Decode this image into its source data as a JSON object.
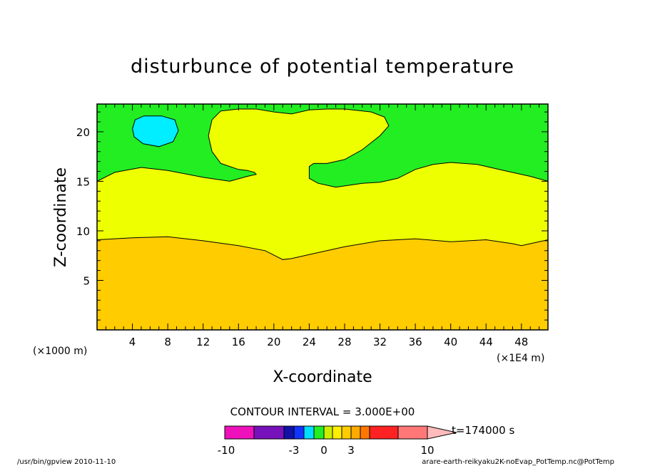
{
  "chart_data": {
    "type": "heatmap",
    "title": "disturbunce of potential temperature",
    "xlabel": "X-coordinate",
    "ylabel": "Z-coordinate",
    "x_unit_left": "(×1000 m)",
    "x_unit_right": "(×1E4 m)",
    "xlim": [
      0,
      51
    ],
    "ylim": [
      0,
      22.8
    ],
    "x_ticks": [
      4,
      8,
      12,
      16,
      20,
      24,
      28,
      32,
      36,
      40,
      44,
      48
    ],
    "y_ticks": [
      5,
      10,
      15,
      20
    ],
    "contour_interval_label": "CONTOUR INTERVAL = 3.000E+00",
    "time_label": "t=174000 s",
    "colorbar": {
      "tick_labels": [
        "-10",
        "-3",
        "0",
        "3",
        "10"
      ],
      "tick_values": [
        -10,
        -3,
        0,
        3,
        10
      ],
      "colors": [
        "#ee11bb",
        "#7711bb",
        "#1111aa",
        "#1133ff",
        "#00ddff",
        "#22ee22",
        "#ccee00",
        "#ffee00",
        "#ffcc00",
        "#ffaa00",
        "#ff7700",
        "#ff2222",
        "#ff7777",
        "#ffbbbb"
      ]
    },
    "regions": [
      {
        "name": "orange",
        "color": "#ffcc00"
      },
      {
        "name": "yellow",
        "color": "#eeff00"
      },
      {
        "name": "green",
        "color": "#22ee22"
      },
      {
        "name": "cyan",
        "color": "#00eeff"
      }
    ],
    "contours": {
      "lower_boundary": [
        [
          0,
          9.1
        ],
        [
          4,
          9.3
        ],
        [
          8,
          9.4
        ],
        [
          12,
          9.0
        ],
        [
          16,
          8.5
        ],
        [
          19,
          8.0
        ],
        [
          21,
          7.1
        ],
        [
          22,
          7.2
        ],
        [
          24,
          7.6
        ],
        [
          28,
          8.4
        ],
        [
          32,
          9.0
        ],
        [
          36,
          9.2
        ],
        [
          40,
          8.9
        ],
        [
          44,
          9.1
        ],
        [
          47,
          8.7
        ],
        [
          48,
          8.5
        ],
        [
          50,
          8.9
        ],
        [
          51,
          9.1
        ]
      ],
      "upper_boundary": [
        [
          0,
          15.0
        ],
        [
          2,
          15.9
        ],
        [
          5,
          16.4
        ],
        [
          8,
          16.1
        ],
        [
          12,
          15.4
        ],
        [
          15,
          15.0
        ],
        [
          17,
          15.5
        ],
        [
          18,
          15.7
        ],
        [
          17.8,
          15.9
        ],
        [
          17,
          16.1
        ],
        [
          16,
          16.2
        ],
        [
          14,
          16.8
        ],
        [
          13,
          18.0
        ],
        [
          12.6,
          19.6
        ],
        [
          13,
          21.2
        ],
        [
          14,
          22.1
        ],
        [
          16,
          22.3
        ],
        [
          18,
          22.3
        ],
        [
          20,
          22.0
        ],
        [
          22,
          21.8
        ],
        [
          24,
          22.2
        ],
        [
          26,
          22.3
        ],
        [
          28,
          22.3
        ],
        [
          31,
          22.0
        ],
        [
          32.5,
          21.5
        ],
        [
          33,
          20.6
        ],
        [
          32,
          19.6
        ],
        [
          30,
          18.2
        ],
        [
          28,
          17.2
        ],
        [
          26,
          16.8
        ],
        [
          24.5,
          16.8
        ],
        [
          24,
          16.5
        ],
        [
          24,
          15.3
        ],
        [
          25,
          14.8
        ],
        [
          27,
          14.4
        ],
        [
          30,
          14.8
        ],
        [
          32,
          14.9
        ],
        [
          34,
          15.3
        ],
        [
          36,
          16.2
        ],
        [
          38,
          16.7
        ],
        [
          40,
          16.9
        ],
        [
          43,
          16.7
        ],
        [
          46,
          16.1
        ],
        [
          49,
          15.5
        ],
        [
          51,
          15.0
        ]
      ],
      "cyan_blob": [
        [
          4,
          20.3
        ],
        [
          4.3,
          21.2
        ],
        [
          5.3,
          21.6
        ],
        [
          7.3,
          21.6
        ],
        [
          8.8,
          21.2
        ],
        [
          9.2,
          20.1
        ],
        [
          8.6,
          19.0
        ],
        [
          7,
          18.5
        ],
        [
          5.2,
          18.8
        ],
        [
          4.2,
          19.5
        ]
      ]
    }
  },
  "footer": {
    "left": "/usr/bin/gpview   2010-11-10",
    "right": "arare-earth-reikyaku2K-noEvap_PotTemp.nc@PotTemp"
  }
}
